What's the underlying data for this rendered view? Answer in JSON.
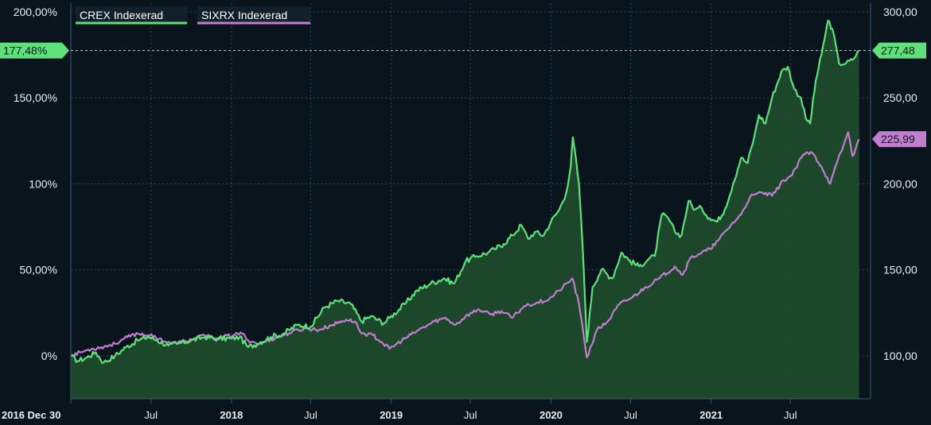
{
  "chart_data": {
    "type": "area",
    "x_axis": {
      "start_label": "2016 Dec 30",
      "ticks": [
        {
          "label": "2016 Dec 30",
          "date": "2016-12-30",
          "bold": true
        },
        {
          "label": "Jul",
          "date": "2017-07-01",
          "bold": false
        },
        {
          "label": "2018",
          "date": "2018-01-01",
          "bold": true
        },
        {
          "label": "Jul",
          "date": "2018-07-01",
          "bold": false
        },
        {
          "label": "2019",
          "date": "2019-01-01",
          "bold": true
        },
        {
          "label": "Jul",
          "date": "2019-07-01",
          "bold": false
        },
        {
          "label": "2020",
          "date": "2020-01-01",
          "bold": true
        },
        {
          "label": "Jul",
          "date": "2020-07-01",
          "bold": false
        },
        {
          "label": "2021",
          "date": "2021-01-01",
          "bold": true
        },
        {
          "label": "Jul",
          "date": "2021-07-01",
          "bold": false
        }
      ],
      "range": [
        "2016-12-30",
        "2021-12-31"
      ]
    },
    "y_left": {
      "range": [
        -25,
        205
      ],
      "ticks": [
        {
          "value": 0,
          "label": "0%"
        },
        {
          "value": 50,
          "label": "50,00%"
        },
        {
          "value": 100,
          "label": "100%"
        },
        {
          "value": 150,
          "label": "150,00%"
        },
        {
          "value": 200,
          "label": "200,00%"
        }
      ]
    },
    "y_right": {
      "range": [
        75,
        305
      ],
      "ticks": [
        {
          "value": 100,
          "label": "100,00"
        },
        {
          "value": 150,
          "label": "150,00"
        },
        {
          "value": 200,
          "label": "200,00"
        },
        {
          "value": 250,
          "label": "250,00"
        },
        {
          "value": 300,
          "label": "300,00"
        }
      ]
    },
    "grid": true,
    "legend_position": "top-left",
    "series": [
      {
        "name": "CREX Indexerad",
        "color": "#5ee07a",
        "fill": "#1d4a2c",
        "last_value_label": "277,48",
        "last_percent_label": "177,48%",
        "points": [
          [
            "2016-12-30",
            0
          ],
          [
            "2017-01-15",
            -3
          ],
          [
            "2017-02-05",
            -1
          ],
          [
            "2017-02-25",
            2
          ],
          [
            "2017-03-15",
            -4
          ],
          [
            "2017-04-10",
            0
          ],
          [
            "2017-05-05",
            5
          ],
          [
            "2017-06-01",
            9
          ],
          [
            "2017-06-25",
            11
          ],
          [
            "2017-07-15",
            9
          ],
          [
            "2017-08-10",
            6
          ],
          [
            "2017-09-01",
            7
          ],
          [
            "2017-10-01",
            9
          ],
          [
            "2017-11-01",
            11
          ],
          [
            "2017-12-01",
            10
          ],
          [
            "2018-01-01",
            10
          ],
          [
            "2018-01-20",
            11
          ],
          [
            "2018-02-08",
            5
          ],
          [
            "2018-03-01",
            7
          ],
          [
            "2018-04-01",
            11
          ],
          [
            "2018-05-01",
            13
          ],
          [
            "2018-06-01",
            18
          ],
          [
            "2018-07-01",
            17
          ],
          [
            "2018-08-01",
            28
          ],
          [
            "2018-09-01",
            32
          ],
          [
            "2018-10-01",
            30
          ],
          [
            "2018-10-25",
            20
          ],
          [
            "2018-11-15",
            23
          ],
          [
            "2018-12-15",
            19
          ],
          [
            "2018-12-28",
            22
          ],
          [
            "2019-02-01",
            30
          ],
          [
            "2019-03-01",
            38
          ],
          [
            "2019-04-01",
            42
          ],
          [
            "2019-05-01",
            45
          ],
          [
            "2019-05-25",
            42
          ],
          [
            "2019-06-20",
            55
          ],
          [
            "2019-07-15",
            58
          ],
          [
            "2019-08-10",
            60
          ],
          [
            "2019-08-25",
            62
          ],
          [
            "2019-09-15",
            65
          ],
          [
            "2019-10-05",
            70
          ],
          [
            "2019-10-25",
            76
          ],
          [
            "2019-11-10",
            68
          ],
          [
            "2019-11-25",
            72
          ],
          [
            "2019-12-15",
            70
          ],
          [
            "2020-01-01",
            78
          ],
          [
            "2020-01-20",
            85
          ],
          [
            "2020-02-05",
            95
          ],
          [
            "2020-02-15",
            110
          ],
          [
            "2020-02-20",
            127
          ],
          [
            "2020-03-05",
            100
          ],
          [
            "2020-03-14",
            60
          ],
          [
            "2020-03-23",
            8
          ],
          [
            "2020-04-05",
            40
          ],
          [
            "2020-04-25",
            50
          ],
          [
            "2020-05-20",
            45
          ],
          [
            "2020-06-10",
            60
          ],
          [
            "2020-06-30",
            55
          ],
          [
            "2020-07-20",
            52
          ],
          [
            "2020-08-10",
            56
          ],
          [
            "2020-08-25",
            58
          ],
          [
            "2020-09-10",
            82
          ],
          [
            "2020-09-25",
            80
          ],
          [
            "2020-10-10",
            72
          ],
          [
            "2020-10-25",
            70
          ],
          [
            "2020-11-10",
            90
          ],
          [
            "2020-11-25",
            85
          ],
          [
            "2020-12-10",
            86
          ],
          [
            "2020-12-28",
            80
          ],
          [
            "2021-01-15",
            78
          ],
          [
            "2021-02-01",
            85
          ],
          [
            "2021-02-20",
            100
          ],
          [
            "2021-03-10",
            115
          ],
          [
            "2021-03-25",
            112
          ],
          [
            "2021-04-10",
            128
          ],
          [
            "2021-04-20",
            140
          ],
          [
            "2021-05-05",
            135
          ],
          [
            "2021-05-20",
            150
          ],
          [
            "2021-06-10",
            165
          ],
          [
            "2021-06-25",
            168
          ],
          [
            "2021-07-10",
            155
          ],
          [
            "2021-07-25",
            150
          ],
          [
            "2021-08-05",
            138
          ],
          [
            "2021-08-15",
            135
          ],
          [
            "2021-08-28",
            160
          ],
          [
            "2021-09-10",
            175
          ],
          [
            "2021-09-25",
            195
          ],
          [
            "2021-10-05",
            190
          ],
          [
            "2021-10-20",
            170
          ],
          [
            "2021-11-05",
            170
          ],
          [
            "2021-11-20",
            172
          ],
          [
            "2021-12-05",
            177.48
          ]
        ]
      },
      {
        "name": "SIXRX Indexerad",
        "color": "#c37dcf",
        "fill": "#1d4a2c",
        "last_value_label": "225,99",
        "points": [
          [
            "2016-12-30",
            0
          ],
          [
            "2017-01-20",
            2
          ],
          [
            "2017-02-15",
            4
          ],
          [
            "2017-03-10",
            5
          ],
          [
            "2017-04-10",
            7
          ],
          [
            "2017-05-01",
            10
          ],
          [
            "2017-06-01",
            13
          ],
          [
            "2017-06-25",
            12
          ],
          [
            "2017-07-20",
            10
          ],
          [
            "2017-08-15",
            7
          ],
          [
            "2017-09-10",
            8
          ],
          [
            "2017-10-10",
            10
          ],
          [
            "2017-11-01",
            12
          ],
          [
            "2017-11-20",
            10
          ],
          [
            "2017-12-15",
            11
          ],
          [
            "2018-01-05",
            12
          ],
          [
            "2018-01-25",
            13
          ],
          [
            "2018-02-08",
            9
          ],
          [
            "2018-03-05",
            7
          ],
          [
            "2018-03-25",
            9
          ],
          [
            "2018-04-20",
            11
          ],
          [
            "2018-05-20",
            14
          ],
          [
            "2018-06-20",
            16
          ],
          [
            "2018-07-20",
            15
          ],
          [
            "2018-08-20",
            18
          ],
          [
            "2018-09-20",
            21
          ],
          [
            "2018-10-10",
            20
          ],
          [
            "2018-10-25",
            13
          ],
          [
            "2018-11-20",
            12
          ],
          [
            "2018-12-10",
            8
          ],
          [
            "2018-12-28",
            4
          ],
          [
            "2019-02-01",
            10
          ],
          [
            "2019-03-05",
            15
          ],
          [
            "2019-04-10",
            20
          ],
          [
            "2019-05-05",
            22
          ],
          [
            "2019-05-28",
            18
          ],
          [
            "2019-06-20",
            23
          ],
          [
            "2019-07-20",
            27
          ],
          [
            "2019-08-15",
            24
          ],
          [
            "2019-09-10",
            26
          ],
          [
            "2019-10-05",
            22
          ],
          [
            "2019-11-01",
            29
          ],
          [
            "2019-12-01",
            31
          ],
          [
            "2019-12-28",
            33
          ],
          [
            "2020-01-20",
            38
          ],
          [
            "2020-02-19",
            45
          ],
          [
            "2020-03-05",
            30
          ],
          [
            "2020-03-23",
            -1
          ],
          [
            "2020-04-15",
            15
          ],
          [
            "2020-05-10",
            20
          ],
          [
            "2020-06-05",
            30
          ],
          [
            "2020-07-05",
            34
          ],
          [
            "2020-08-05",
            40
          ],
          [
            "2020-09-05",
            45
          ],
          [
            "2020-10-10",
            52
          ],
          [
            "2020-10-28",
            47
          ],
          [
            "2020-11-15",
            57
          ],
          [
            "2020-12-10",
            60
          ],
          [
            "2020-12-30",
            62
          ],
          [
            "2021-01-20",
            68
          ],
          [
            "2021-02-15",
            76
          ],
          [
            "2021-03-10",
            82
          ],
          [
            "2021-03-30",
            92
          ],
          [
            "2021-04-25",
            95
          ],
          [
            "2021-05-20",
            93
          ],
          [
            "2021-06-15",
            102
          ],
          [
            "2021-07-05",
            105
          ],
          [
            "2021-07-30",
            117
          ],
          [
            "2021-08-20",
            118
          ],
          [
            "2021-09-10",
            110
          ],
          [
            "2021-09-30",
            100
          ],
          [
            "2021-10-15",
            112
          ],
          [
            "2021-10-30",
            122
          ],
          [
            "2021-11-10",
            130
          ],
          [
            "2021-11-20",
            116
          ],
          [
            "2021-12-05",
            125.99
          ]
        ]
      }
    ],
    "reference_line": {
      "value": 177.48,
      "left_label": "177,48%",
      "right_label": "277,48"
    }
  },
  "colors": {
    "background": "#0a141c",
    "grid": "#2a4a64",
    "axis": "#3a5a78",
    "crex": "#5ee07a",
    "sixrx": "#c37dcf",
    "area": "#1d4a2c"
  }
}
